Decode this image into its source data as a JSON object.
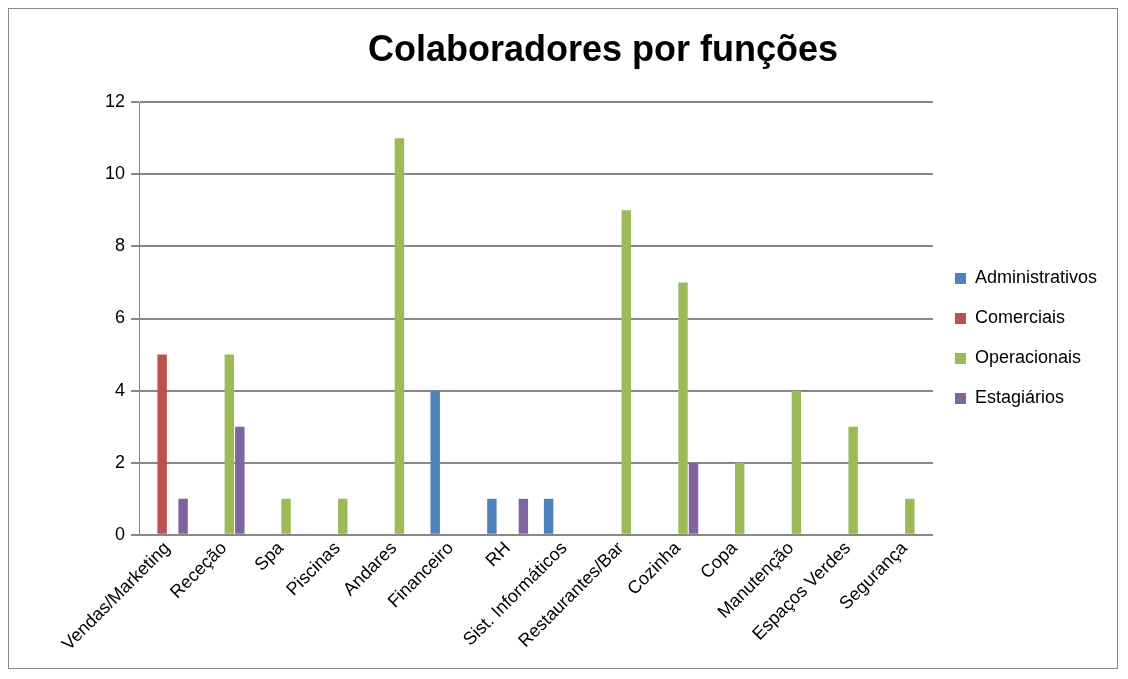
{
  "chart_data": {
    "type": "bar",
    "title": "Colaboradores por funções",
    "categories": [
      "Vendas/Marketing",
      "Receção",
      "Spa",
      "Piscinas",
      "Andares",
      "Financeiro",
      "RH",
      "Sist. Informáticos",
      "Restaurantes/Bar",
      "Cozinha",
      "Copa",
      "Manutenção",
      "Espaços Verdes",
      "Segurança"
    ],
    "series": [
      {
        "name": "Administrativos",
        "color": "#4f81bd",
        "values": [
          null,
          null,
          null,
          null,
          null,
          4,
          1,
          1,
          null,
          null,
          null,
          null,
          null,
          null
        ]
      },
      {
        "name": "Comerciais",
        "color": "#c0504d",
        "values": [
          5,
          null,
          null,
          null,
          null,
          null,
          null,
          null,
          null,
          null,
          null,
          null,
          null,
          null
        ]
      },
      {
        "name": "Operacionais",
        "color": "#9bbb59",
        "values": [
          null,
          5,
          1,
          1,
          11,
          null,
          null,
          null,
          9,
          7,
          2,
          4,
          3,
          1
        ]
      },
      {
        "name": "Estagiários",
        "color": "#8064a2",
        "values": [
          1,
          3,
          null,
          null,
          null,
          null,
          1,
          null,
          null,
          2,
          null,
          null,
          null,
          null
        ]
      }
    ],
    "ylim": [
      0,
      12
    ],
    "yticks": [
      0,
      2,
      4,
      6,
      8,
      10,
      12
    ],
    "grid": "y",
    "legend": "right"
  }
}
